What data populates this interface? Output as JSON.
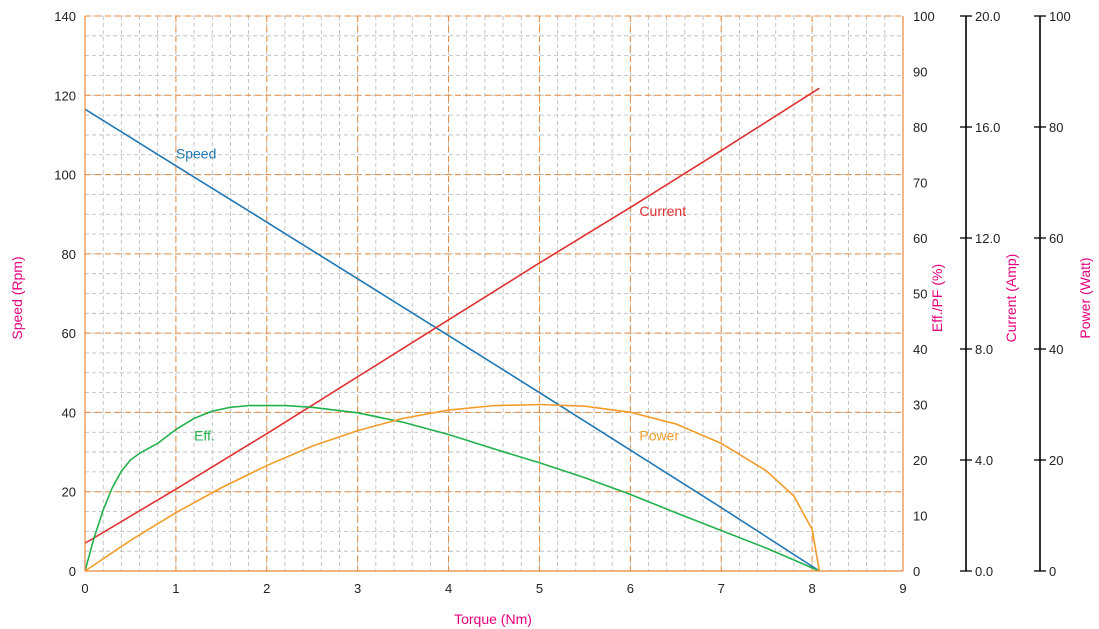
{
  "chart_data": {
    "type": "line",
    "x_axis": {
      "label": "Torque (Nm)",
      "range": [
        0,
        9
      ],
      "ticks": [
        "0",
        "1",
        "2",
        "3",
        "4",
        "5",
        "6",
        "7",
        "8",
        "9"
      ]
    },
    "y_axes": [
      {
        "id": "speed",
        "label": "Speed (Rpm)",
        "range": [
          0,
          140
        ],
        "ticks": [
          "0",
          "20",
          "40",
          "60",
          "80",
          "100",
          "120",
          "140"
        ]
      },
      {
        "id": "eff",
        "label": "Eff./PF (%)",
        "range": [
          0,
          100
        ],
        "ticks": [
          "0",
          "10",
          "20",
          "30",
          "40",
          "50",
          "60",
          "70",
          "80",
          "90",
          "100"
        ]
      },
      {
        "id": "current",
        "label": "Current (Amp)",
        "range": [
          0,
          20
        ],
        "ticks": [
          "0.0",
          "4.0",
          "8.0",
          "12.0",
          "16.0",
          "20.0"
        ]
      },
      {
        "id": "power",
        "label": "Power (Watt)",
        "range": [
          0,
          100
        ],
        "ticks": [
          "0",
          "20",
          "40",
          "60",
          "80",
          "100"
        ]
      }
    ],
    "grid": true,
    "series": [
      {
        "name": "Speed",
        "axis": "speed",
        "color": "#1f77b4",
        "label_at": [
          1.0,
          104
        ],
        "points": [
          [
            0,
            116.5
          ],
          [
            1,
            102.2
          ],
          [
            2,
            88.0
          ],
          [
            3,
            73.7
          ],
          [
            4,
            59.4
          ],
          [
            5,
            45.0
          ],
          [
            6,
            30.5
          ],
          [
            7,
            16.0
          ],
          [
            8.08,
            0
          ]
        ]
      },
      {
        "name": "Current",
        "axis": "current",
        "color": "#e03030",
        "label_at": [
          6.1,
          12.8
        ],
        "points": [
          [
            0,
            1.0
          ],
          [
            1,
            2.95
          ],
          [
            2,
            4.95
          ],
          [
            3,
            7.0
          ],
          [
            4,
            9.05
          ],
          [
            5,
            11.1
          ],
          [
            6,
            13.1
          ],
          [
            7,
            15.15
          ],
          [
            8.08,
            17.4
          ]
        ]
      },
      {
        "name": "Eff.",
        "axis": "eff",
        "color": "#22b14c",
        "label_at": [
          1.2,
          23.5
        ],
        "points": [
          [
            0,
            0
          ],
          [
            0.1,
            6
          ],
          [
            0.2,
            11
          ],
          [
            0.3,
            15
          ],
          [
            0.4,
            18
          ],
          [
            0.5,
            20
          ],
          [
            0.6,
            21.2
          ],
          [
            0.8,
            23
          ],
          [
            1.0,
            25.5
          ],
          [
            1.2,
            27.5
          ],
          [
            1.4,
            28.8
          ],
          [
            1.6,
            29.5
          ],
          [
            1.8,
            29.8
          ],
          [
            2.0,
            29.8
          ],
          [
            2.2,
            29.8
          ],
          [
            2.5,
            29.5
          ],
          [
            3,
            28.5
          ],
          [
            3.5,
            26.8
          ],
          [
            4,
            24.6
          ],
          [
            4.5,
            22
          ],
          [
            5,
            19.5
          ],
          [
            5.5,
            16.8
          ],
          [
            6,
            13.8
          ],
          [
            6.5,
            10.5
          ],
          [
            7,
            7.3
          ],
          [
            7.5,
            4.1
          ],
          [
            8.08,
            0
          ]
        ]
      },
      {
        "name": "Power",
        "axis": "power",
        "color": "#f39c2a",
        "label_at": [
          6.1,
          23.5
        ],
        "points": [
          [
            0,
            0
          ],
          [
            0.5,
            5.5
          ],
          [
            1,
            10.5
          ],
          [
            1.5,
            15
          ],
          [
            2,
            19
          ],
          [
            2.5,
            22.5
          ],
          [
            3,
            25.3
          ],
          [
            3.5,
            27.5
          ],
          [
            4,
            29
          ],
          [
            4.5,
            29.8
          ],
          [
            5,
            30
          ],
          [
            5.5,
            29.7
          ],
          [
            6,
            28.6
          ],
          [
            6.5,
            26.5
          ],
          [
            7,
            23
          ],
          [
            7.5,
            18
          ],
          [
            7.8,
            13.5
          ],
          [
            8.0,
            7.5
          ],
          [
            8.08,
            0
          ]
        ]
      }
    ]
  }
}
